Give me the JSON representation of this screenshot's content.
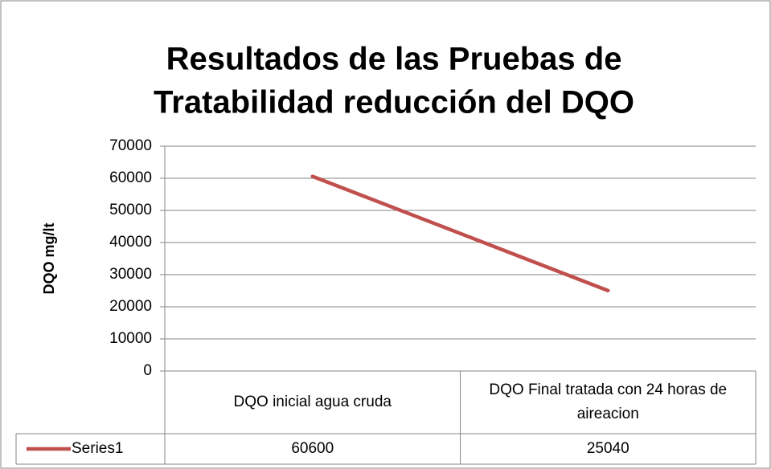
{
  "chart_data": {
    "type": "line",
    "title": [
      "Resultados de las Pruebas de",
      "Tratabilidad reducción del DQO"
    ],
    "y_label": "DQO mg/lt",
    "categories": [
      "DQO inicial agua cruda",
      "DQO Final tratada con 24 horas de aireacion"
    ],
    "series": [
      {
        "name": "Series1",
        "color": "#c0504d",
        "values": [
          60600,
          25040
        ]
      }
    ],
    "ylim": [
      0,
      70000
    ],
    "yticks": [
      0,
      10000,
      20000,
      30000,
      40000,
      50000,
      60000,
      70000
    ],
    "grid": true,
    "data_table": true
  }
}
